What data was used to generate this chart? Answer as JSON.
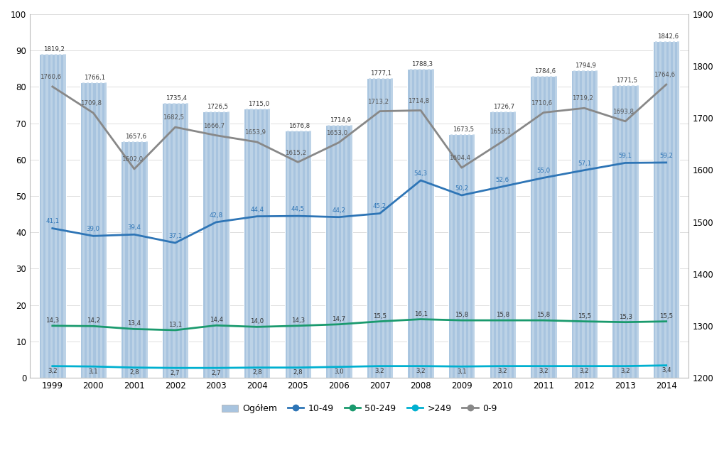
{
  "years": [
    1999,
    2000,
    2001,
    2002,
    2003,
    2004,
    2005,
    2006,
    2007,
    2008,
    2009,
    2010,
    2011,
    2012,
    2013,
    2014
  ],
  "bar_values": [
    89.0,
    81.3,
    65.0,
    75.6,
    73.3,
    74.0,
    68.0,
    69.5,
    82.5,
    85.0,
    67.0,
    73.2,
    83.0,
    84.5,
    80.5,
    92.5
  ],
  "bar_labels": [
    "1819,2",
    "1766,1",
    "1657,6",
    "1735,4",
    "1726,5",
    "1715,0",
    "1676,8",
    "1714,9",
    "1777,1",
    "1788,3",
    "1673,5",
    "1726,7",
    "1784,6",
    "1794,9",
    "1771,5",
    "1842,6"
  ],
  "line_10_49": [
    41.1,
    39.0,
    39.4,
    37.1,
    42.8,
    44.4,
    44.5,
    44.2,
    45.2,
    54.3,
    50.2,
    52.6,
    55.0,
    57.1,
    59.1,
    59.2
  ],
  "line_10_49_labels": [
    "41,1",
    "39,0",
    "39,4",
    "37,1",
    "42,8",
    "44,4",
    "44,5",
    "44,2",
    "45,2",
    "54,3",
    "50,2",
    "52,6",
    "55,0",
    "57,1",
    "59,1",
    "59,2"
  ],
  "line_50_249": [
    14.3,
    14.2,
    13.4,
    13.1,
    14.4,
    14.0,
    14.3,
    14.7,
    15.5,
    16.1,
    15.8,
    15.8,
    15.8,
    15.5,
    15.3,
    15.5
  ],
  "line_50_249_labels": [
    "14,3",
    "14,2",
    "13,4",
    "13,1",
    "14,4",
    "14,0",
    "14,3",
    "14,7",
    "15,5",
    "16,1",
    "15,8",
    "15,8",
    "15,8",
    "15,5",
    "15,3",
    "15,5"
  ],
  "line_gt249": [
    3.2,
    3.1,
    2.8,
    2.7,
    2.7,
    2.8,
    2.8,
    3.0,
    3.2,
    3.2,
    3.1,
    3.2,
    3.2,
    3.2,
    3.2,
    3.4
  ],
  "line_gt249_labels": [
    "3,2",
    "3,1",
    "2,8",
    "2,7",
    "2,7",
    "2,8",
    "2,8",
    "3,0",
    "3,2",
    "3,2",
    "3,1",
    "3,2",
    "3,2",
    "3,2",
    "3,2",
    "3,4"
  ],
  "line_0_9_raw": [
    1760.6,
    1709.8,
    1602.0,
    1682.5,
    1666.7,
    1653.9,
    1615.2,
    1653.0,
    1713.2,
    1714.8,
    1604.4,
    1655.1,
    1710.6,
    1719.2,
    1693.8,
    1764.6
  ],
  "line_0_9_labels": [
    "1760,6",
    "1709,8",
    "1602,0",
    "1682,5",
    "1666,7",
    "1653,9",
    "1615,2",
    "1653,0",
    "1713,2",
    "1714,8",
    "1604,4",
    "1655,1",
    "1710,6",
    "1719,2",
    "1693,8",
    "1764,6"
  ],
  "bar_color": "#a8c4df",
  "bar_stripe_color": "#c5d9ea",
  "color_10_49": "#2e75b6",
  "color_50_249": "#1a9a6e",
  "color_gt249": "#00b0d0",
  "color_0_9": "#888888",
  "ylim_left": [
    0,
    100
  ],
  "ylim_right": [
    1200,
    1900
  ],
  "ylabel_left_ticks": [
    0,
    10,
    20,
    30,
    40,
    50,
    60,
    70,
    80,
    90,
    100
  ],
  "ylabel_right_ticks": [
    1200,
    1300,
    1400,
    1500,
    1600,
    1700,
    1800,
    1900
  ],
  "legend_labels": [
    "Ogółem",
    "10-49",
    "50-249",
    ">249",
    "0-9"
  ],
  "figsize": [
    10.19,
    6.38
  ],
  "dpi": 100
}
